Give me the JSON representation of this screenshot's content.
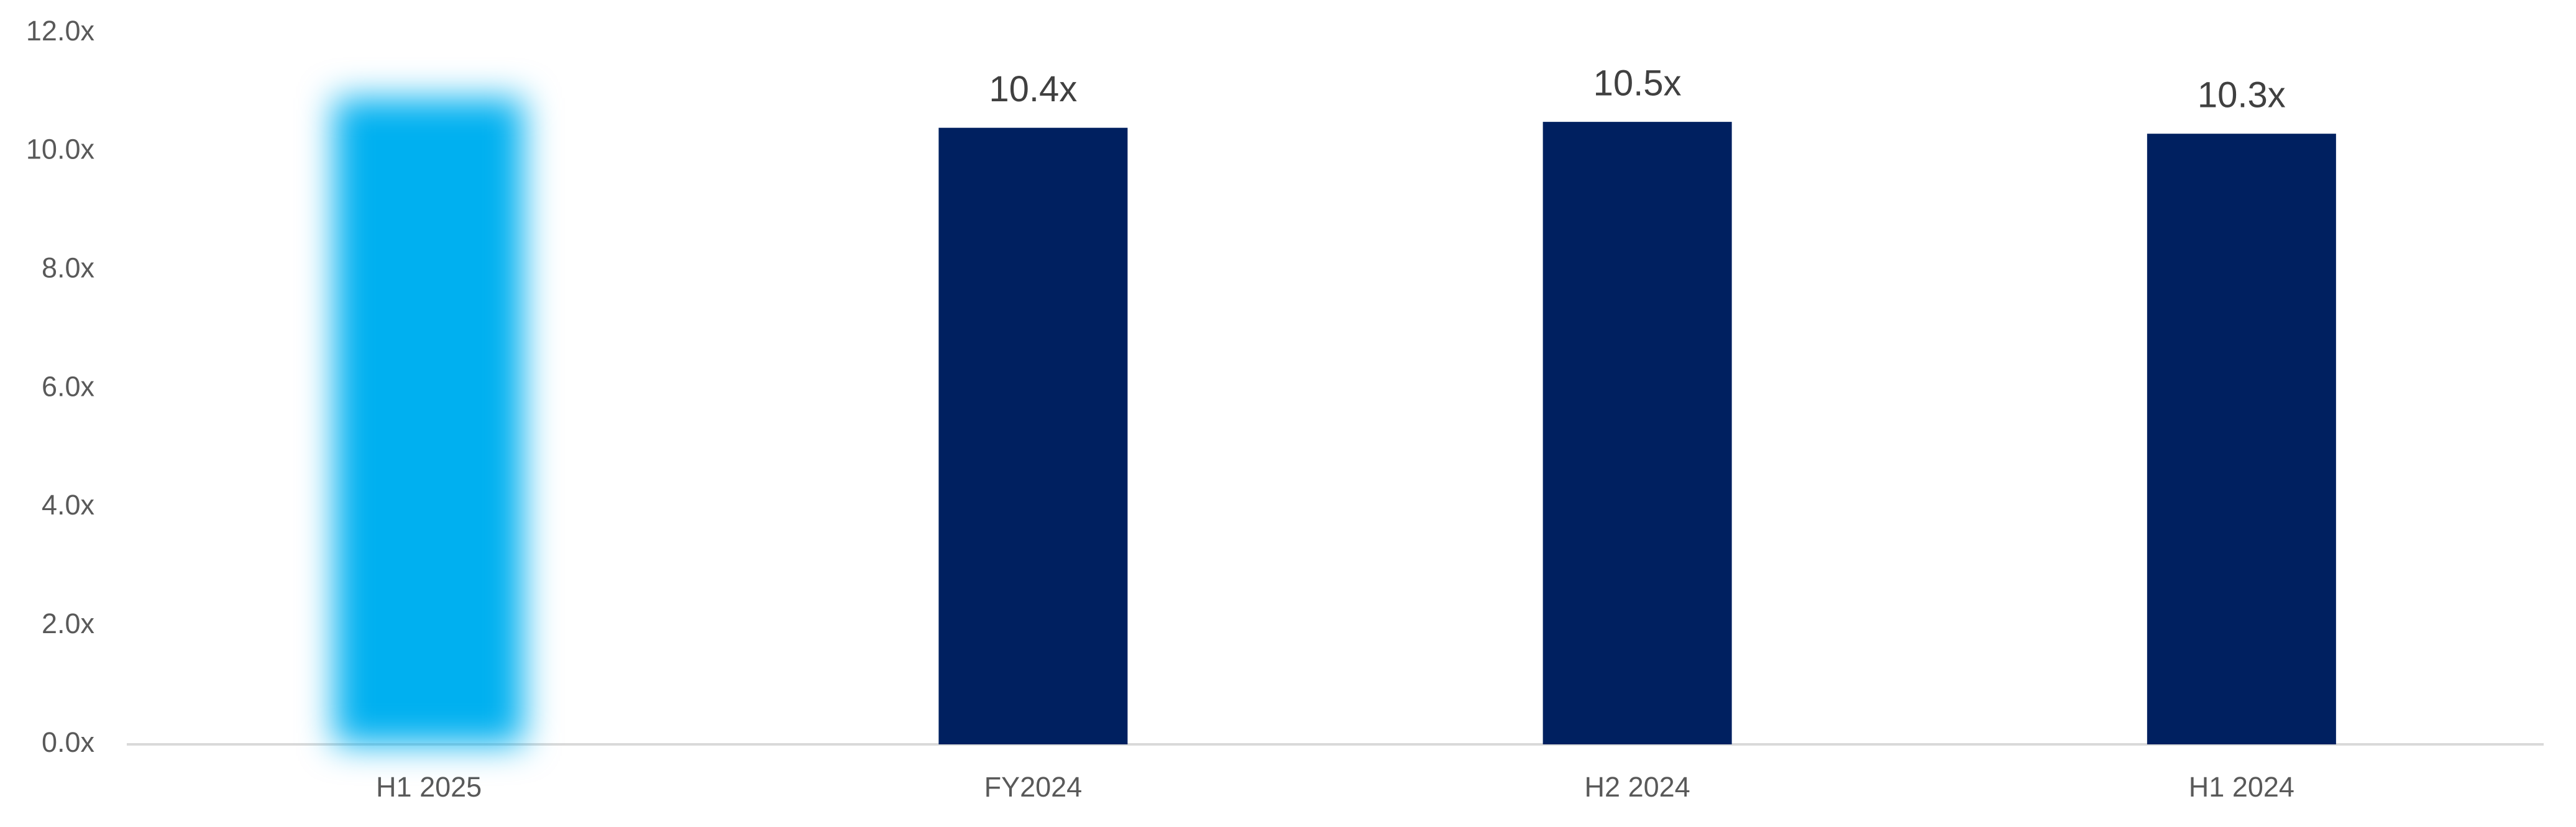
{
  "chart_data": {
    "type": "bar",
    "categories": [
      "H1 2025",
      "FY2024",
      "H2 2024",
      "H1 2024"
    ],
    "values": [
      10.9,
      10.4,
      10.5,
      10.3
    ],
    "value_labels": [
      null,
      "10.4x",
      "10.5x",
      "10.3x"
    ],
    "colors": [
      "#00b0f0",
      "#002060",
      "#002060",
      "#002060"
    ],
    "blurred": [
      true,
      false,
      false,
      false
    ],
    "ylim": [
      0,
      12
    ],
    "yticks": [
      {
        "value": 0,
        "label": "0.0x"
      },
      {
        "value": 2,
        "label": "2.0x"
      },
      {
        "value": 4,
        "label": "4.0x"
      },
      {
        "value": 6,
        "label": "6.0x"
      },
      {
        "value": 8,
        "label": "8.0x"
      },
      {
        "value": 10,
        "label": "10.0x"
      },
      {
        "value": 12,
        "label": "12.0x"
      }
    ],
    "grid": false
  }
}
